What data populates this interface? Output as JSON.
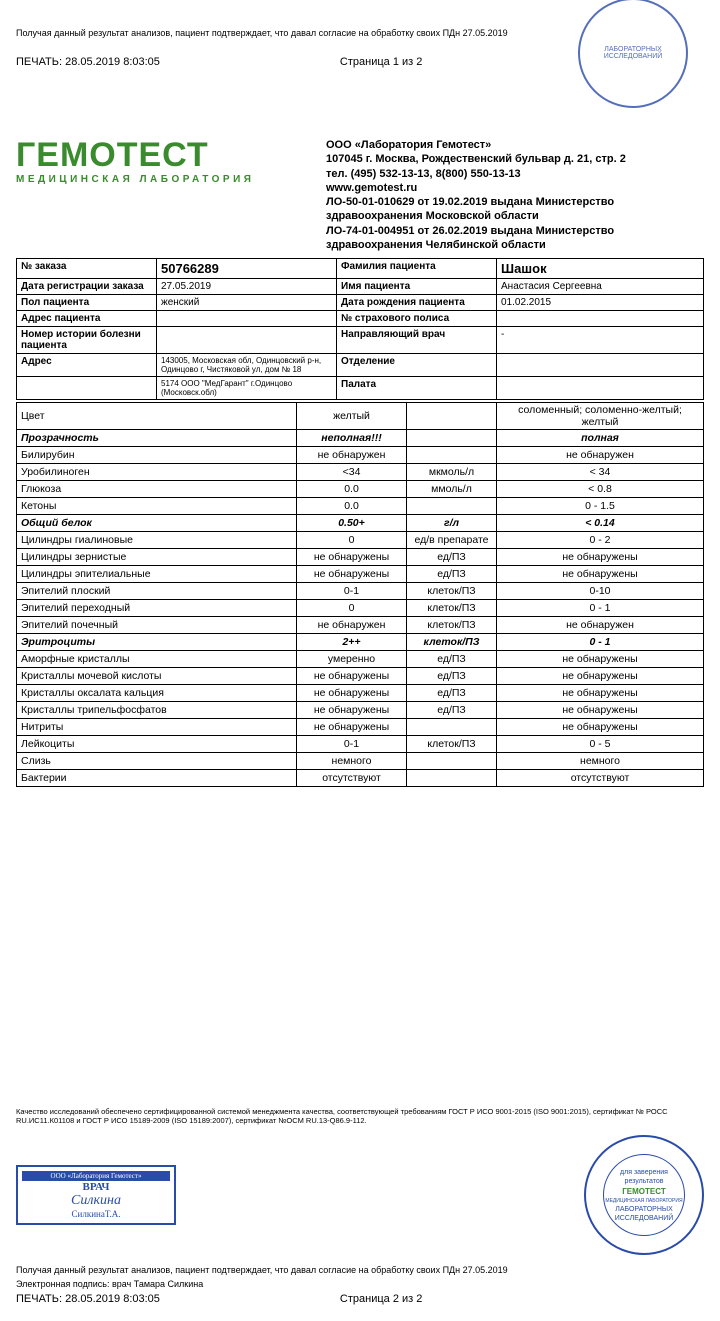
{
  "page1": {
    "consent": "Получая данный результат анализов, пациент подтверждает, что давал согласие на обработку своих ПДн 27.05.2019",
    "print": "ПЕЧАТЬ: 28.05.2019 8:03:05",
    "pageNum": "Страница 1 из 2"
  },
  "logo": {
    "main": "ГЕМОТЕСТ",
    "sub": "МЕДИЦИНСКАЯ ЛАБОРАТОРИЯ"
  },
  "org": {
    "name": "ООО «Лаборатория Гемотест»",
    "addr": "107045 г. Москва, Рождественский бульвар д. 21, стр. 2",
    "phone": "тел. (495) 532-13-13, 8(800) 550-13-13",
    "site": "www.gemotest.ru",
    "lic1": "ЛО-50-01-010629 от 19.02.2019 выдана Министерство здравоохранения Московской области",
    "lic2": "ЛО-74-01-004951 от 26.02.2019 выдана Министерство здравоохранения Челябинской области"
  },
  "info": {
    "orderLabel": "№ заказа",
    "order": "50766289",
    "famLabel": "Фамилия пациента",
    "fam": "Шашок",
    "regLabel": "Дата регистрации заказа",
    "reg": "27.05.2019",
    "nameLabel": "Имя пациента",
    "name": "Анастасия Сергеевна",
    "sexLabel": "Пол пациента",
    "sex": "женский",
    "dobLabel": "Дата рождения пациента",
    "dob": "01.02.2015",
    "paddrLabel": "Адрес пациента",
    "paddr": "",
    "insLabel": "№ страхового полиса",
    "ins": "",
    "histLabel": "Номер истории болезни пациента",
    "hist": "",
    "docLabel": "Направляющий врач",
    "doc": "-",
    "addrLabel": "Адрес",
    "addr": "143005, Московская обл, Одинцовский р-н, Одинцово г, Чистяковой ул, дом № 18",
    "deptLabel": "Отделение",
    "dept": "",
    "branch": "5174 ООО \"МедГарант\" г.Одинцово (Московск.обл)",
    "wardLabel": "Палата",
    "ward": ""
  },
  "results": [
    {
      "name": "Цвет",
      "val": "желтый",
      "unit": "",
      "ref": "соломенный; соломенно-желтый; желтый",
      "bold": false
    },
    {
      "name": "Прозрачность",
      "val": "неполная!!!",
      "unit": "",
      "ref": "полная",
      "bold": true
    },
    {
      "name": "Билирубин",
      "val": "не обнаружен",
      "unit": "",
      "ref": "не обнаружен",
      "bold": false
    },
    {
      "name": "Уробилиноген",
      "val": "<34",
      "unit": "мкмоль/л",
      "ref": "< 34",
      "bold": false
    },
    {
      "name": "Глюкоза",
      "val": "0.0",
      "unit": "ммоль/л",
      "ref": "< 0.8",
      "bold": false
    },
    {
      "name": "Кетоны",
      "val": "0.0",
      "unit": "",
      "ref": "0 - 1.5",
      "bold": false
    },
    {
      "name": "Общий белок",
      "val": "0.50+",
      "unit": "г/л",
      "ref": "< 0.14",
      "bold": true
    },
    {
      "name": "Цилиндры гиалиновые",
      "val": "0",
      "unit": "ед/в препарате",
      "ref": "0 - 2",
      "bold": false
    },
    {
      "name": "Цилиндры зернистые",
      "val": "не обнаружены",
      "unit": "ед/ПЗ",
      "ref": "не обнаружены",
      "bold": false
    },
    {
      "name": "Цилиндры эпителиальные",
      "val": "не обнаружены",
      "unit": "ед/ПЗ",
      "ref": "не обнаружены",
      "bold": false
    },
    {
      "name": "Эпителий плоский",
      "val": "0-1",
      "unit": "клеток/ПЗ",
      "ref": "0-10",
      "bold": false
    },
    {
      "name": "Эпителий переходный",
      "val": "0",
      "unit": "клеток/ПЗ",
      "ref": "0 - 1",
      "bold": false
    },
    {
      "name": "Эпителий почечный",
      "val": "не обнаружен",
      "unit": "клеток/ПЗ",
      "ref": "не обнаружен",
      "bold": false
    },
    {
      "name": "Эритроциты",
      "val": "2++",
      "unit": "клеток/ПЗ",
      "ref": "0 - 1",
      "bold": true
    },
    {
      "name": "Аморфные кристаллы",
      "val": "умеренно",
      "unit": "ед/ПЗ",
      "ref": "не обнаружены",
      "bold": false
    },
    {
      "name": "Кристаллы мочевой кислоты",
      "val": "не обнаружены",
      "unit": "ед/ПЗ",
      "ref": "не обнаружены",
      "bold": false
    },
    {
      "name": "Кристаллы оксалата кальция",
      "val": "не обнаружены",
      "unit": "ед/ПЗ",
      "ref": "не обнаружены",
      "bold": false
    },
    {
      "name": "Кристаллы трипельфосфатов",
      "val": "не обнаружены",
      "unit": "ед/ПЗ",
      "ref": "не обнаружены",
      "bold": false
    },
    {
      "name": "Нитриты",
      "val": "не обнаружены",
      "unit": "",
      "ref": "не обнаружены",
      "bold": false
    },
    {
      "name": "Лейкоциты",
      "val": "0-1",
      "unit": "клеток/ПЗ",
      "ref": "0 - 5",
      "bold": false
    },
    {
      "name": "Слизь",
      "val": "немного",
      "unit": "",
      "ref": "немного",
      "bold": false
    },
    {
      "name": "Бактерии",
      "val": "отсутствуют",
      "unit": "",
      "ref": "отсутствуют",
      "bold": false
    }
  ],
  "footer": {
    "quality": "Качество исследований обеспечено сертифицированной системой менеджмента качества, соответствующей требованиям ГОСТ Р ИСО 9001-2015 (ISO 9001:2015), сертификат № РОСС RU.ИС11.К01108 и ГОСТ Р ИСО 15189-2009 (ISO 15189:2007), сертификат №ОСМ RU.13-Q86.9-112.",
    "docStamp": {
      "top": "ООО «Лаборатория Гемотест»",
      "vr": "ВРАЧ",
      "sig": "Силкина",
      "name": "СилкинаТ.А."
    },
    "roundStamp": {
      "l1": "для заверения",
      "l2": "результатов",
      "brand": "ГЕМОТЕСТ",
      "sub": "МЕДИЦИНСКАЯ ЛАБОРАТОРИЯ",
      "l3": "ЛАБОРАТОРНЫХ",
      "l4": "ИССЛЕДОВАНИЙ"
    },
    "consent": "Получая данный результат анализов, пациент подтверждает, что давал согласие на обработку своих ПДн 27.05.2019",
    "esig": "Электронная подпись: врач Тамара Силкина",
    "print": "ПЕЧАТЬ: 28.05.2019 8:03:05",
    "pageNum": "Страница 2 из 2"
  },
  "colors": {
    "text": "#000000",
    "logo_green": "#3a8a2e",
    "stamp_blue": "#2a4ba8",
    "border": "#000000",
    "background": "#ffffff"
  }
}
